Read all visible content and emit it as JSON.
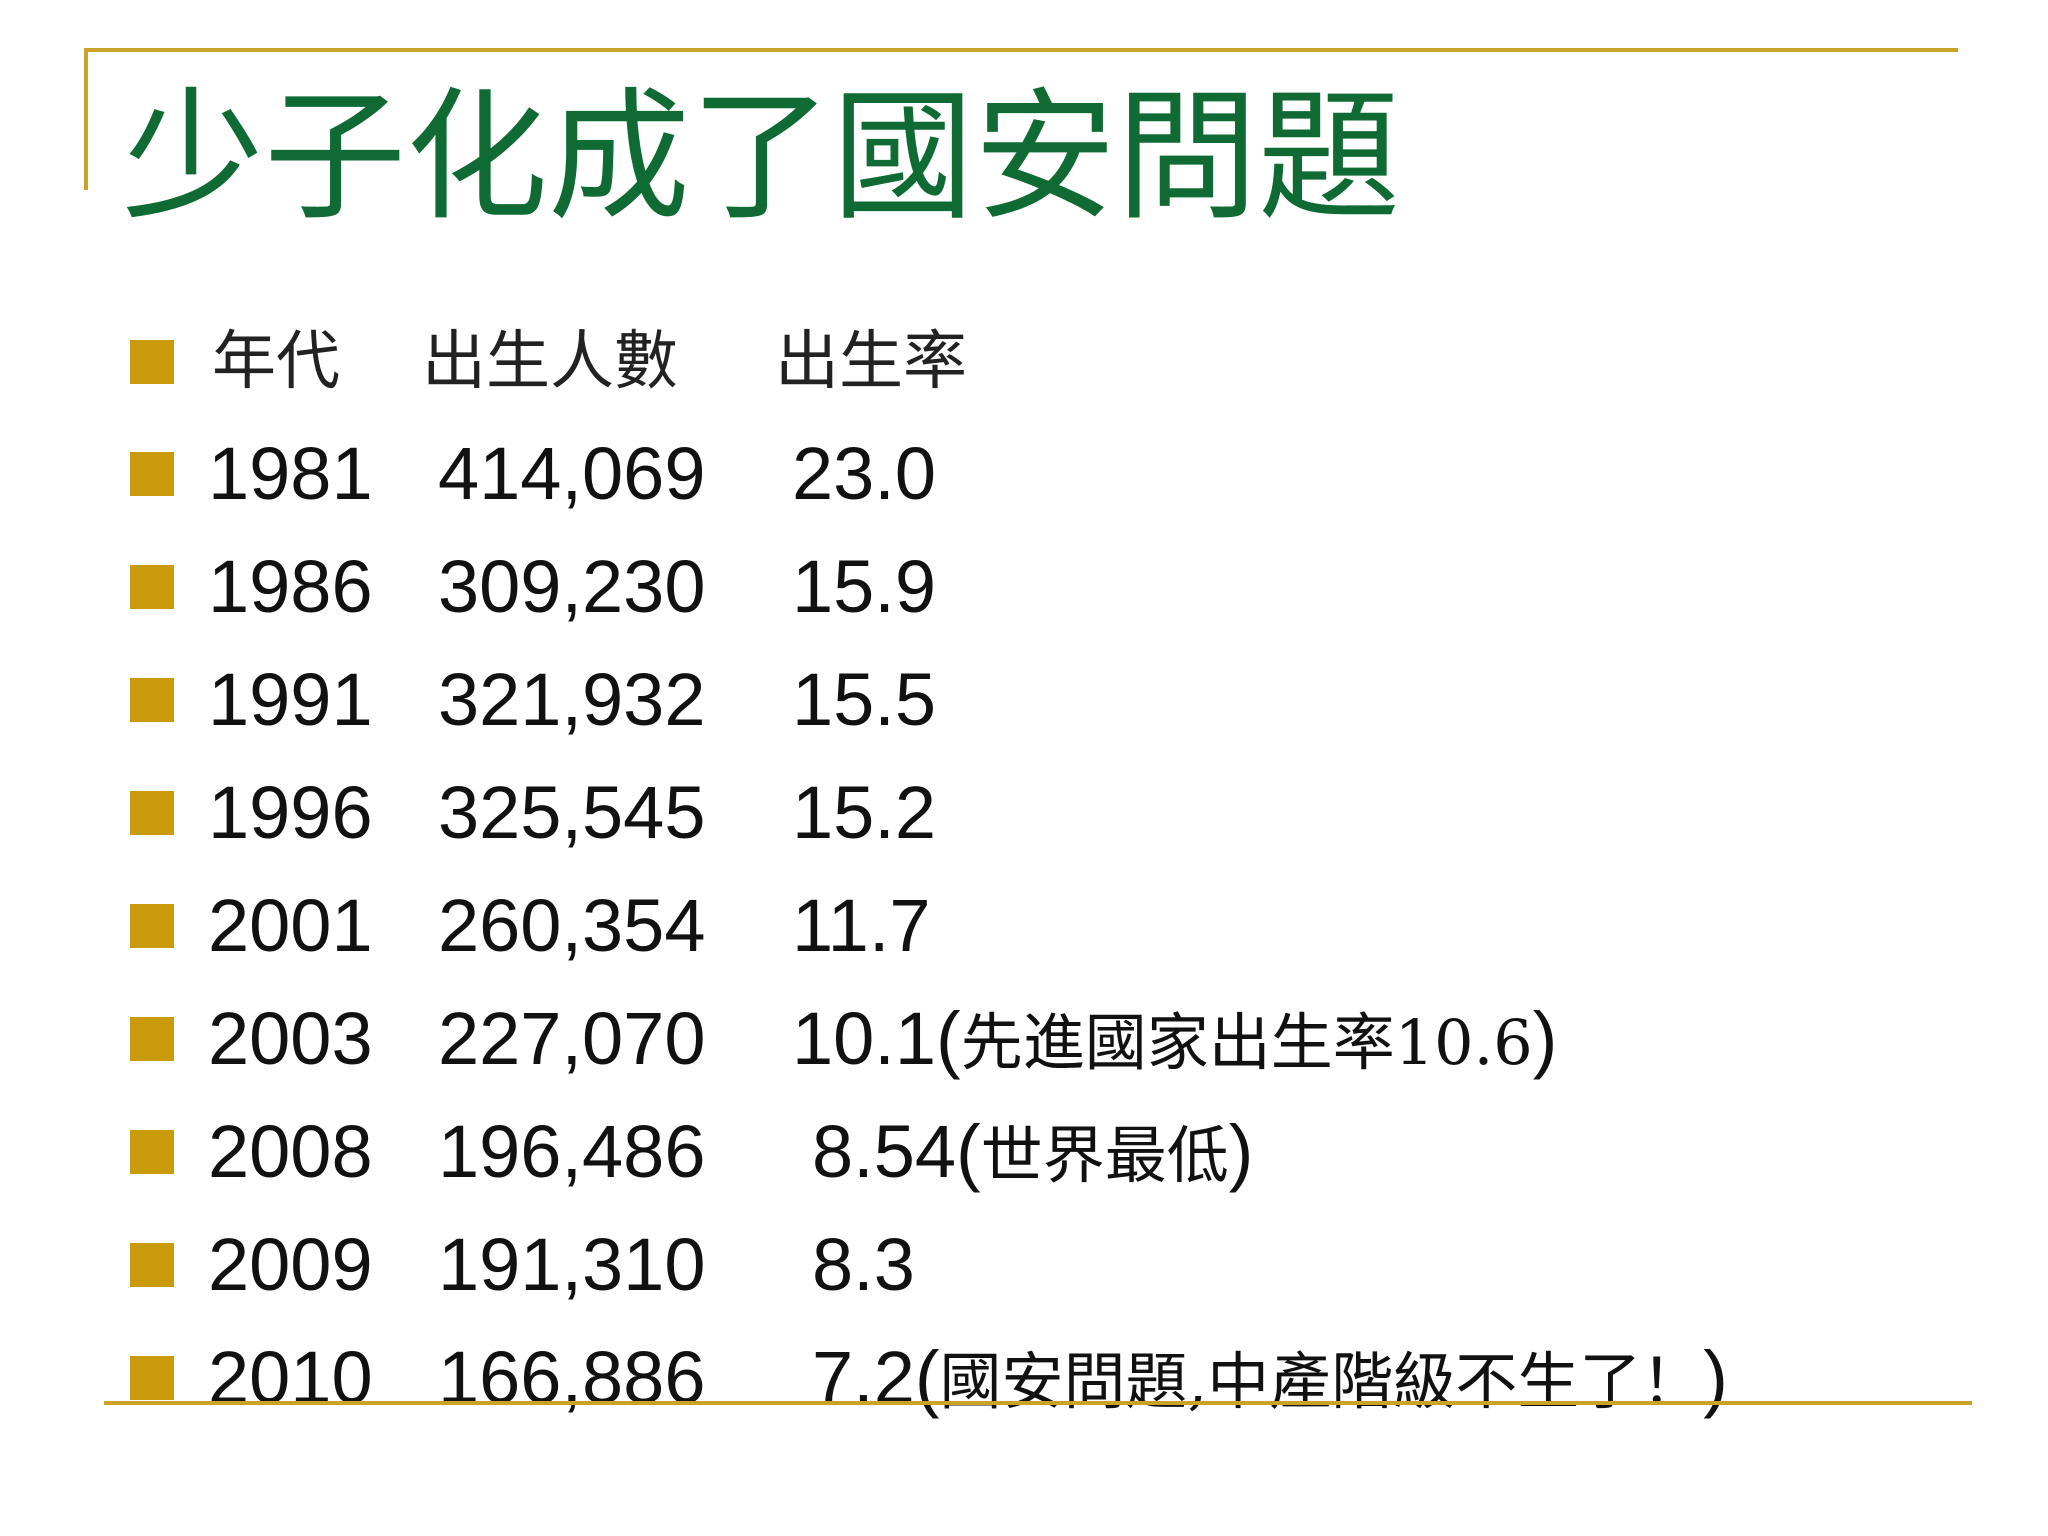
{
  "slide": {
    "title": "少子化成了國安問題",
    "colors": {
      "title": "#0f6b33",
      "bullet": "#c99a0b",
      "rule": "#c9a227"
    },
    "header": {
      "year": "年代",
      "births": "出生人數",
      "rate": "出生率"
    },
    "rows": [
      {
        "year": "1981",
        "births": "414,069",
        "rate": "23.0",
        "note": ""
      },
      {
        "year": "1986",
        "births": "309,230",
        "rate": "15.9",
        "note": ""
      },
      {
        "year": "1991",
        "births": "321,932",
        "rate": "15.5",
        "note": ""
      },
      {
        "year": "1996",
        "births": "325,545",
        "rate": "15.2",
        "note": ""
      },
      {
        "year": "2001",
        "births": "260,354",
        "rate": "11.7",
        "note": ""
      },
      {
        "year": "2003",
        "births": "227,070",
        "rate": "10.1",
        "note": "先進國家出生率10.6"
      },
      {
        "year": "2008",
        "births": "196,486",
        "rate": "8.54",
        "note": "世界最低"
      },
      {
        "year": "2009",
        "births": "191,310",
        "rate": "8.3",
        "note": ""
      },
      {
        "year": "2010",
        "births": "166,886",
        "rate": "7.2",
        "note": "國安問題,中產階級不生了！"
      }
    ]
  }
}
